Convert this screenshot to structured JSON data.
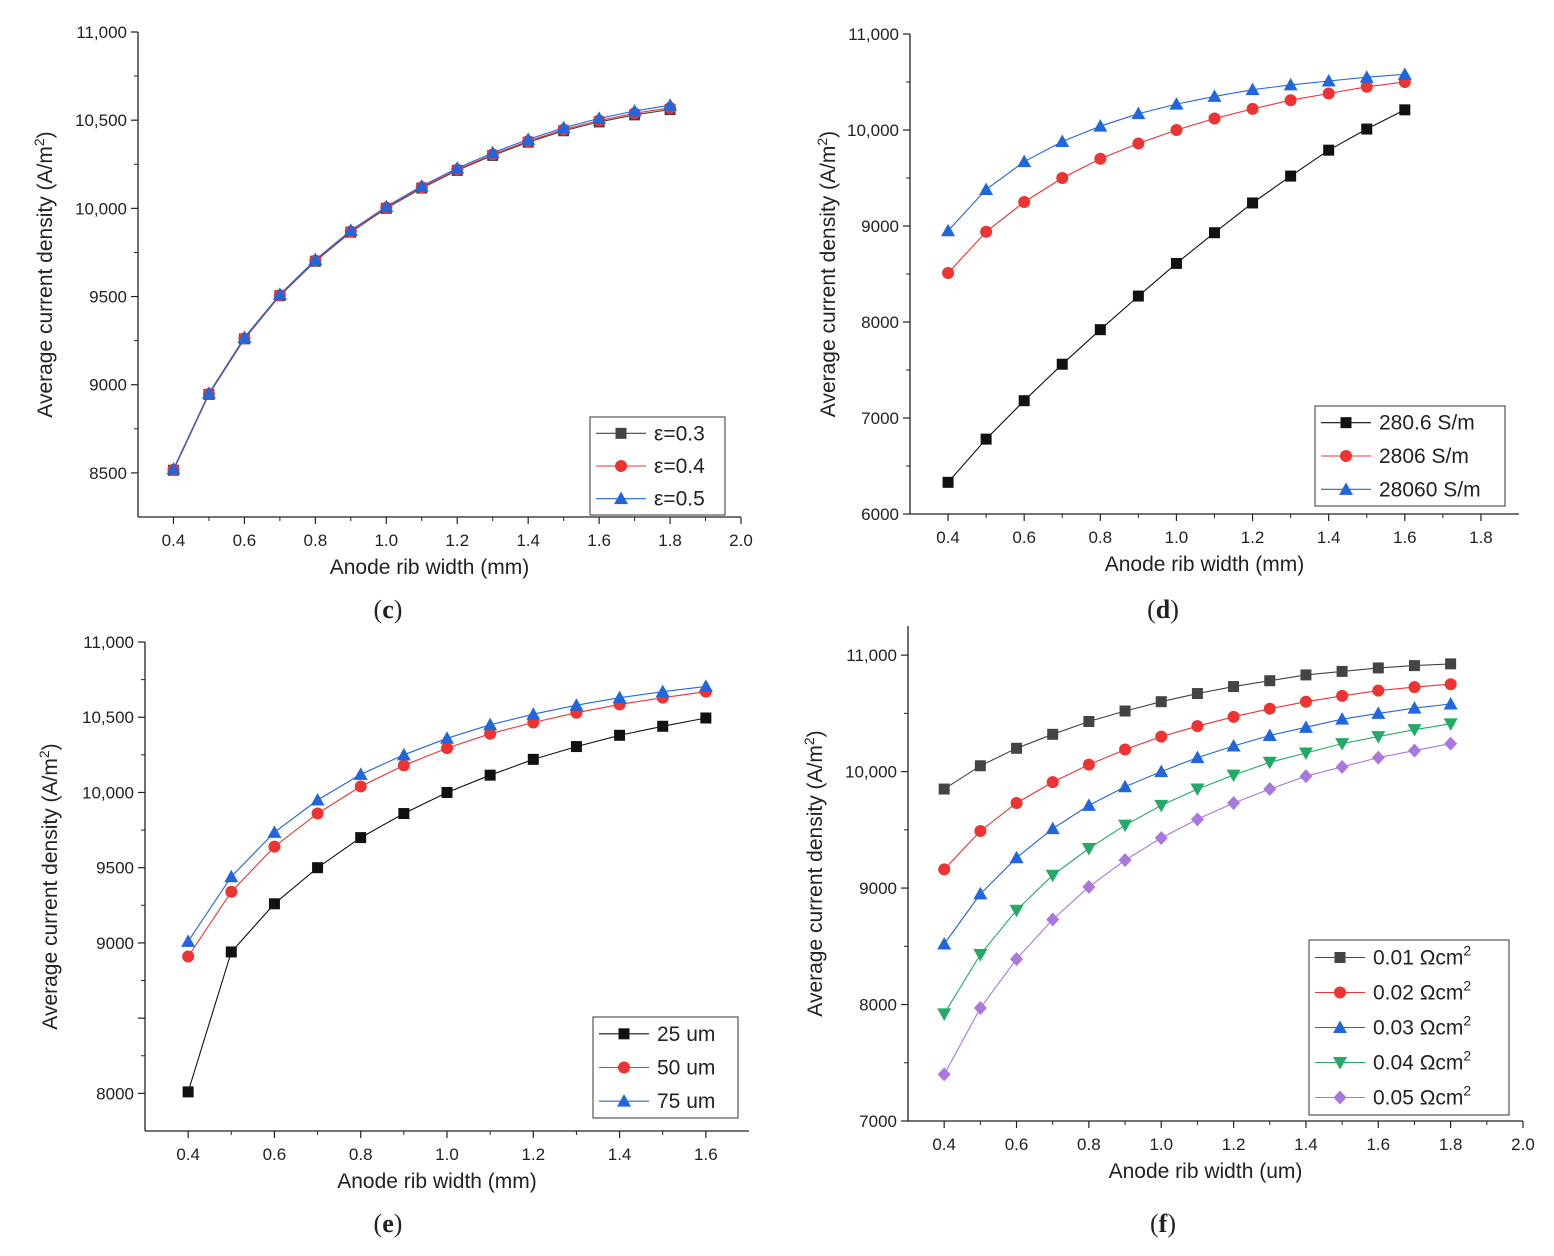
{
  "figure": {
    "panel_labels": [
      {
        "open": "(",
        "letter": "c",
        "close": ")"
      },
      {
        "open": "(",
        "letter": "d",
        "close": ")"
      },
      {
        "open": "(",
        "letter": "e",
        "close": ")"
      },
      {
        "open": "(",
        "letter": "f",
        "close": ")"
      }
    ]
  },
  "chart_data": [
    {
      "type": "line",
      "panel": "c",
      "xlabel": "Anode rib width (mm)",
      "ylabel": "Average current density (A/m",
      "ylabel_sup": "2",
      "ylabel_end": ")",
      "xlim": [
        0.3,
        2.0
      ],
      "ylim": [
        8250,
        11000
      ],
      "xticks": [
        0.4,
        0.6,
        0.8,
        1.0,
        1.2,
        1.4,
        1.6,
        1.8,
        2.0
      ],
      "xtick_labels": [
        "0.4",
        "0.6",
        "0.8",
        "1.0",
        "1.2",
        "1.4",
        "1.6",
        "1.8",
        "2.0"
      ],
      "yticks": [
        8500,
        9000,
        9500,
        10000,
        10500,
        11000
      ],
      "ytick_labels": [
        "8500",
        "9000",
        "9500",
        "10,000",
        "10,500",
        "11,000"
      ],
      "legend_position": "bottom-right",
      "x": [
        0.4,
        0.5,
        0.6,
        0.7,
        0.8,
        0.9,
        1.0,
        1.1,
        1.2,
        1.3,
        1.4,
        1.5,
        1.6,
        1.7,
        1.8
      ],
      "series": [
        {
          "name": "ε=0.3",
          "sup": "",
          "marker": "square",
          "color": "#444444",
          "values": [
            8515,
            8945,
            9260,
            9505,
            9700,
            9865,
            10000,
            10115,
            10215,
            10300,
            10375,
            10440,
            10490,
            10530,
            10560
          ]
        },
        {
          "name": "ε=0.4",
          "sup": "",
          "marker": "circle",
          "color": "#ee3333",
          "values": [
            8518,
            8948,
            9263,
            9508,
            9704,
            9869,
            10004,
            10120,
            10220,
            10306,
            10381,
            10447,
            10498,
            10539,
            10570
          ]
        },
        {
          "name": "ε=0.5",
          "sup": "",
          "marker": "triangle-up",
          "color": "#2266dd",
          "values": [
            8522,
            8952,
            9268,
            9512,
            9709,
            9875,
            10010,
            10127,
            10228,
            10315,
            10391,
            10457,
            10510,
            10552,
            10585
          ]
        }
      ]
    },
    {
      "type": "line",
      "panel": "d",
      "xlabel": "Anode rib width (mm)",
      "ylabel": "Average current density (A/m",
      "ylabel_sup": "2",
      "ylabel_end": ")",
      "xlim": [
        0.3,
        1.9
      ],
      "ylim": [
        6000,
        11000
      ],
      "xticks": [
        0.4,
        0.6,
        0.8,
        1.0,
        1.2,
        1.4,
        1.6,
        1.8
      ],
      "xtick_labels": [
        "0.4",
        "0.6",
        "0.8",
        "1.0",
        "1.2",
        "1.4",
        "1.6",
        "1.8"
      ],
      "yticks": [
        6000,
        7000,
        8000,
        9000,
        10000,
        11000
      ],
      "ytick_labels": [
        "6000",
        "7000",
        "8000",
        "9000",
        "10,000",
        "11,000"
      ],
      "legend_position": "bottom-right",
      "x": [
        0.4,
        0.5,
        0.6,
        0.7,
        0.8,
        0.9,
        1.0,
        1.1,
        1.2,
        1.3,
        1.4,
        1.5,
        1.6
      ],
      "series": [
        {
          "name": "280.6 S/m",
          "sup": "",
          "marker": "square",
          "color": "#111111",
          "values": [
            6330,
            6780,
            7180,
            7560,
            7920,
            8270,
            8610,
            8930,
            9240,
            9520,
            9790,
            10010,
            10210
          ]
        },
        {
          "name": "2806 S/m",
          "sup": "",
          "marker": "circle",
          "color": "#ee3333",
          "values": [
            8510,
            8940,
            9250,
            9500,
            9700,
            9860,
            10000,
            10120,
            10220,
            10310,
            10380,
            10450,
            10500
          ]
        },
        {
          "name": "28060 S/m",
          "sup": "",
          "marker": "triangle-up",
          "color": "#2266dd",
          "values": [
            8950,
            9380,
            9670,
            9880,
            10040,
            10170,
            10270,
            10350,
            10420,
            10470,
            10510,
            10550,
            10580
          ]
        }
      ]
    },
    {
      "type": "line",
      "panel": "e",
      "xlabel": "Anode rib width (mm)",
      "ylabel": "Average current density (A/m",
      "ylabel_sup": "2",
      "ylabel_end": ")",
      "xlim": [
        0.3,
        1.7
      ],
      "ylim": [
        7750,
        11000
      ],
      "xticks": [
        0.4,
        0.6,
        0.8,
        1.0,
        1.2,
        1.4,
        1.6
      ],
      "xtick_labels": [
        "0.4",
        "0.6",
        "0.8",
        "1.0",
        "1.2",
        "1.4",
        "1.6"
      ],
      "yticks": [
        8000,
        8500,
        9000,
        9500,
        10000,
        10500,
        11000
      ],
      "ytick_labels": [
        "8000",
        "",
        "9000",
        "9500",
        "10,000",
        "10,500",
        "11,000"
      ],
      "legend_position": "bottom-right",
      "x": [
        0.4,
        0.5,
        0.6,
        0.7,
        0.8,
        0.9,
        1.0,
        1.1,
        1.2,
        1.3,
        1.4,
        1.5,
        1.6
      ],
      "series": [
        {
          "name": "25 um",
          "sup": "",
          "marker": "square",
          "color": "#111111",
          "values": [
            8010,
            8940,
            9260,
            9500,
            9700,
            9860,
            10000,
            10115,
            10220,
            10305,
            10380,
            10440,
            10495
          ]
        },
        {
          "name": "50 um",
          "sup": "",
          "marker": "circle",
          "color": "#ee3333",
          "values": [
            8910,
            9340,
            9640,
            9860,
            10040,
            10180,
            10295,
            10390,
            10465,
            10530,
            10585,
            10630,
            10670
          ]
        },
        {
          "name": "75 um",
          "sup": "",
          "marker": "triangle-up",
          "color": "#2266dd",
          "values": [
            9010,
            9440,
            9735,
            9950,
            10120,
            10250,
            10360,
            10450,
            10520,
            10580,
            10630,
            10670,
            10705
          ]
        }
      ]
    },
    {
      "type": "line",
      "panel": "f",
      "xlabel": "Anode rib width (um)",
      "ylabel": "Average current density (A/m",
      "ylabel_sup": "2",
      "ylabel_end": ")",
      "xlim": [
        0.3,
        2.0
      ],
      "ylim": [
        7000,
        11250
      ],
      "xticks": [
        0.4,
        0.6,
        0.8,
        1.0,
        1.2,
        1.4,
        1.6,
        1.8,
        2.0
      ],
      "xtick_labels": [
        "0.4",
        "0.6",
        "0.8",
        "1.0",
        "1.2",
        "1.4",
        "1.6",
        "1.8",
        "2.0"
      ],
      "yticks": [
        7000,
        8000,
        9000,
        10000,
        11000
      ],
      "ytick_labels": [
        "7000",
        "8000",
        "9000",
        "10,000",
        "11,000"
      ],
      "legend_position": "bottom-right",
      "x": [
        0.4,
        0.5,
        0.6,
        0.7,
        0.8,
        0.9,
        1.0,
        1.1,
        1.2,
        1.3,
        1.4,
        1.5,
        1.6,
        1.7,
        1.8
      ],
      "series": [
        {
          "name": "0.01 Ωcm",
          "sup": "2",
          "marker": "square",
          "color": "#444444",
          "values": [
            9850,
            10050,
            10200,
            10320,
            10430,
            10520,
            10600,
            10670,
            10730,
            10780,
            10830,
            10860,
            10890,
            10910,
            10925
          ]
        },
        {
          "name": "0.02 Ωcm",
          "sup": "2",
          "marker": "circle",
          "color": "#ee3333",
          "values": [
            9160,
            9490,
            9730,
            9910,
            10060,
            10190,
            10300,
            10390,
            10470,
            10540,
            10600,
            10650,
            10695,
            10725,
            10750
          ]
        },
        {
          "name": "0.03 Ωcm",
          "sup": "2",
          "marker": "triangle-up",
          "color": "#2266dd",
          "values": [
            8520,
            8950,
            9260,
            9510,
            9710,
            9870,
            10000,
            10120,
            10220,
            10310,
            10380,
            10450,
            10500,
            10545,
            10580
          ]
        },
        {
          "name": "0.04 Ωcm",
          "sup": "2",
          "marker": "triangle-down",
          "color": "#22aa66",
          "values": [
            7920,
            8430,
            8810,
            9110,
            9340,
            9540,
            9710,
            9850,
            9970,
            10080,
            10160,
            10240,
            10300,
            10360,
            10410
          ]
        },
        {
          "name": "0.05 Ωcm",
          "sup": "2",
          "marker": "diamond",
          "color": "#aa77dd",
          "values": [
            7400,
            7970,
            8390,
            8730,
            9010,
            9240,
            9430,
            9590,
            9730,
            9850,
            9960,
            10040,
            10120,
            10180,
            10240
          ]
        }
      ]
    }
  ]
}
